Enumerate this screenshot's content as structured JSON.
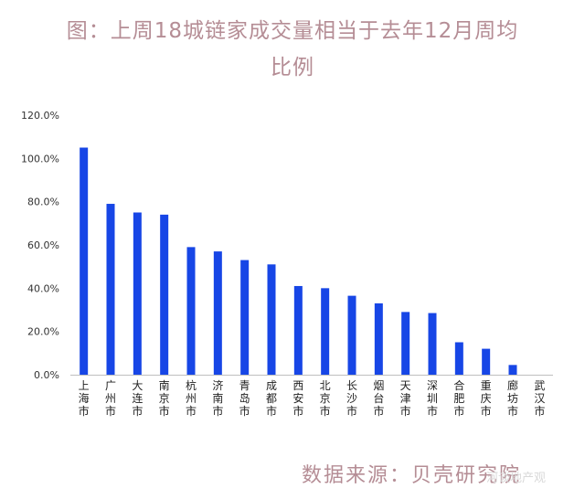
{
  "chart_data": {
    "type": "bar",
    "title_lines": [
      "图：上周18城链家成交量相当于去年12月周均",
      "比例"
    ],
    "categories": [
      "上海市",
      "广州市",
      "大连市",
      "南京市",
      "杭州市",
      "济南市",
      "青岛市",
      "成都市",
      "西安市",
      "北京市",
      "长沙市",
      "烟台市",
      "天津市",
      "深圳市",
      "合肥市",
      "重庆市",
      "廊坊市",
      "武汉市"
    ],
    "values": [
      105,
      79,
      75,
      74,
      59,
      57,
      53,
      51,
      41,
      40,
      36.5,
      33,
      29,
      28.5,
      15,
      12,
      4.5,
      0
    ],
    "ylim": [
      0,
      120
    ],
    "y_ticks": [
      0,
      20,
      40,
      60,
      80,
      100,
      120
    ],
    "y_tick_labels": [
      "0.0%",
      "20.0%",
      "40.0%",
      "60.0%",
      "80.0%",
      "100.0%",
      "120.0%"
    ],
    "xlabel": "",
    "ylabel": "",
    "grid": false,
    "bar_color": "#1746e6"
  },
  "source": "数据来源：贝壳研究院",
  "watermark": "河谈地产观"
}
